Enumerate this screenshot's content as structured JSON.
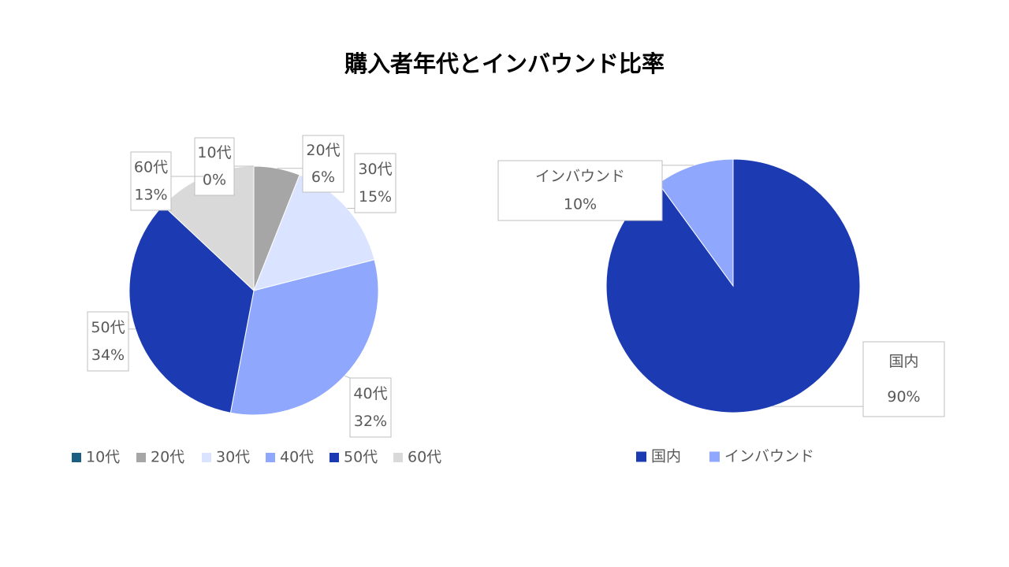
{
  "title": "購入者年代とインバウンド比率",
  "chart_data": [
    {
      "type": "pie",
      "categories": [
        "10代",
        "20代",
        "30代",
        "40代",
        "50代",
        "60代"
      ],
      "values": [
        0,
        6,
        15,
        32,
        34,
        13
      ],
      "value_labels": [
        "0%",
        "6%",
        "15%",
        "32%",
        "34%",
        "13%"
      ],
      "colors": [
        "#1b5e82",
        "#a6a6a6",
        "#dae3ff",
        "#8fa7fc",
        "#1c3bb3",
        "#d9d9d9"
      ],
      "legend": "bottom"
    },
    {
      "type": "pie",
      "categories": [
        "国内",
        "インバウンド"
      ],
      "values": [
        90,
        10
      ],
      "value_labels": [
        "90%",
        "10%"
      ],
      "colors": [
        "#1c3bb3",
        "#8fa7fc"
      ],
      "legend": "bottom"
    }
  ]
}
